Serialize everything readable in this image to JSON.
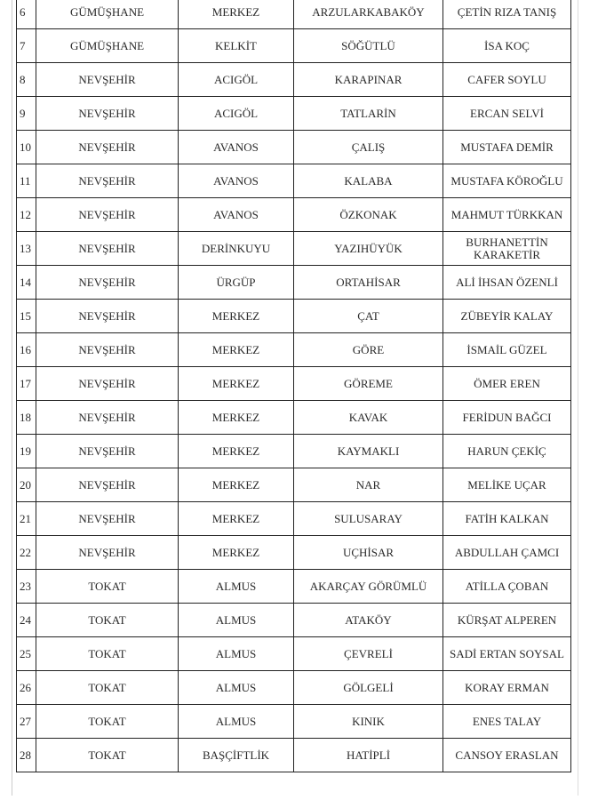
{
  "rows": [
    {
      "no": "6",
      "province": "GÜMÜŞHANE",
      "district": "MERKEZ",
      "village": "ARZULARKABAKÖY",
      "name": "ÇETİN RIZA TANIŞ"
    },
    {
      "no": "7",
      "province": "GÜMÜŞHANE",
      "district": "KELKİT",
      "village": "SÖĞÜTLÜ",
      "name": "İSA KOÇ"
    },
    {
      "no": "8",
      "province": "NEVŞEHİR",
      "district": "ACIGÖL",
      "village": "KARAPINAR",
      "name": "CAFER SOYLU"
    },
    {
      "no": "9",
      "province": "NEVŞEHİR",
      "district": "ACIGÖL",
      "village": "TATLARİN",
      "name": "ERCAN SELVİ"
    },
    {
      "no": "10",
      "province": "NEVŞEHİR",
      "district": "AVANOS",
      "village": "ÇALIŞ",
      "name": "MUSTAFA DEMİR"
    },
    {
      "no": "11",
      "province": "NEVŞEHİR",
      "district": "AVANOS",
      "village": "KALABA",
      "name": "MUSTAFA KÖROĞLU"
    },
    {
      "no": "12",
      "province": "NEVŞEHİR",
      "district": "AVANOS",
      "village": "ÖZKONAK",
      "name": "MAHMUT TÜRKKAN"
    },
    {
      "no": "13",
      "province": "NEVŞEHİR",
      "district": "DERİNKUYU",
      "village": "YAZIHÜYÜK",
      "name": "BURHANETTİN KARAKETİR"
    },
    {
      "no": "14",
      "province": "NEVŞEHİR",
      "district": "ÜRGÜP",
      "village": "ORTAHİSAR",
      "name": "ALİ İHSAN ÖZENLİ"
    },
    {
      "no": "15",
      "province": "NEVŞEHİR",
      "district": "MERKEZ",
      "village": "ÇAT",
      "name": "ZÜBEYİR KALAY"
    },
    {
      "no": "16",
      "province": "NEVŞEHİR",
      "district": "MERKEZ",
      "village": "GÖRE",
      "name": "İSMAİL GÜZEL"
    },
    {
      "no": "17",
      "province": "NEVŞEHİR",
      "district": "MERKEZ",
      "village": "GÖREME",
      "name": "ÖMER EREN"
    },
    {
      "no": "18",
      "province": "NEVŞEHİR",
      "district": "MERKEZ",
      "village": "KAVAK",
      "name": "FERİDUN BAĞCI"
    },
    {
      "no": "19",
      "province": "NEVŞEHİR",
      "district": "MERKEZ",
      "village": "KAYMAKLI",
      "name": "HARUN ÇEKİÇ"
    },
    {
      "no": "20",
      "province": "NEVŞEHİR",
      "district": "MERKEZ",
      "village": "NAR",
      "name": "MELİKE UÇAR"
    },
    {
      "no": "21",
      "province": "NEVŞEHİR",
      "district": "MERKEZ",
      "village": "SULUSARAY",
      "name": "FATİH KALKAN"
    },
    {
      "no": "22",
      "province": "NEVŞEHİR",
      "district": "MERKEZ",
      "village": "UÇHİSAR",
      "name": "ABDULLAH ÇAMCI"
    },
    {
      "no": "23",
      "province": "TOKAT",
      "district": "ALMUS",
      "village": "AKARÇAY GÖRÜMLÜ",
      "name": "ATİLLA ÇOBAN"
    },
    {
      "no": "24",
      "province": "TOKAT",
      "district": "ALMUS",
      "village": "ATAKÖY",
      "name": "KÜRŞAT ALPEREN"
    },
    {
      "no": "25",
      "province": "TOKAT",
      "district": "ALMUS",
      "village": "ÇEVRELİ",
      "name": "SADİ ERTAN SOYSAL"
    },
    {
      "no": "26",
      "province": "TOKAT",
      "district": "ALMUS",
      "village": "GÖLGELİ",
      "name": "KORAY ERMAN"
    },
    {
      "no": "27",
      "province": "TOKAT",
      "district": "ALMUS",
      "village": "KINIK",
      "name": "ENES TALAY"
    },
    {
      "no": "28",
      "province": "TOKAT",
      "district": "BAŞÇİFTLİK",
      "village": "HATİPLİ",
      "name": "CANSOY ERASLAN"
    }
  ]
}
